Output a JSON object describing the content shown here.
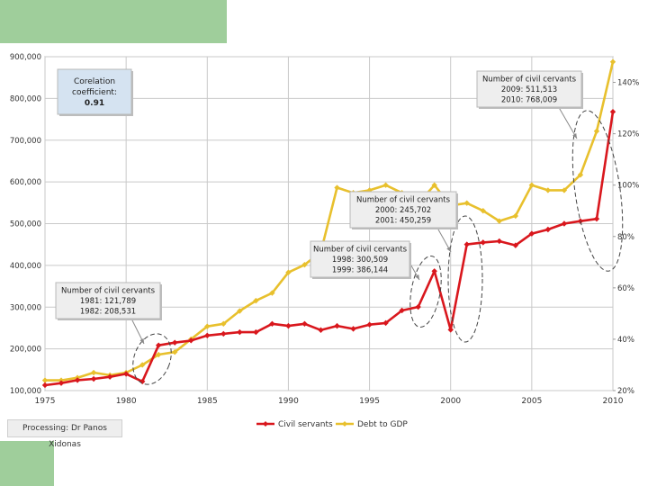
{
  "colors": {
    "civil": "#d9171d",
    "debt": "#e8c02d",
    "accent": "#9fce9b"
  },
  "credit": "Processing: Dr Panos Xidonas",
  "chart_data": {
    "type": "line",
    "x": [
      1975,
      1976,
      1977,
      1978,
      1979,
      1980,
      1981,
      1982,
      1983,
      1984,
      1985,
      1986,
      1987,
      1988,
      1989,
      1990,
      1991,
      1992,
      1993,
      1994,
      1995,
      1996,
      1997,
      1998,
      1999,
      2000,
      2001,
      2002,
      2003,
      2004,
      2005,
      2006,
      2007,
      2008,
      2009,
      2010
    ],
    "xlim": [
      1975,
      2010
    ],
    "x_ticks": [
      1975,
      1980,
      1985,
      1990,
      1995,
      2000,
      2005,
      2010
    ],
    "ylim_left": [
      100000,
      900000
    ],
    "y_ticks_left": [
      "100,000",
      "200,000",
      "300,000",
      "400,000",
      "500,000",
      "600,000",
      "700,000",
      "800,000",
      "900,000"
    ],
    "ylim_right": [
      20,
      150
    ],
    "y_ticks_right": [
      "20%",
      "40%",
      "60%",
      "80%",
      "100%",
      "120%",
      "140%"
    ],
    "series": [
      {
        "name": "Civil servants",
        "axis": "left",
        "values": [
          113000,
          118000,
          125000,
          128000,
          133000,
          140000,
          121789,
          208531,
          215000,
          220000,
          232000,
          236000,
          240000,
          240000,
          260000,
          255000,
          260000,
          245000,
          255000,
          248000,
          258000,
          262000,
          292000,
          300509,
          386144,
          245702,
          450259,
          455000,
          458000,
          448000,
          476000,
          486000,
          500000,
          506000,
          511513,
          768009
        ]
      },
      {
        "name": "Debt to GDP",
        "axis": "right",
        "values": [
          24,
          24,
          25,
          27,
          26,
          27,
          30,
          34,
          35,
          40,
          45,
          46,
          51,
          55,
          58,
          66,
          69,
          74,
          99,
          97,
          98,
          100,
          97,
          93,
          100,
          92,
          93,
          90,
          86,
          88,
          100,
          98,
          98,
          104,
          121,
          148
        ]
      }
    ],
    "legend": [
      "Civil servants",
      "Debt to GDP"
    ],
    "legend_position": "bottom",
    "grid": true,
    "annotations": [
      {
        "kind": "box",
        "lines": [
          "Corelation",
          "coefficient:",
          "0.91"
        ]
      },
      {
        "kind": "callout",
        "lines": [
          "Number of civil cervants",
          "1981: 121,789",
          "1982: 208,531"
        ]
      },
      {
        "kind": "callout",
        "lines": [
          "Number of civil cervants",
          "1998: 300,509",
          "1999: 386,144"
        ]
      },
      {
        "kind": "callout",
        "lines": [
          "Number of civil cervants",
          "2000: 245,702",
          "2001: 450,259"
        ]
      },
      {
        "kind": "callout",
        "lines": [
          "Number of civil cervants",
          "2009: 511,513",
          "2010: 768,009"
        ]
      }
    ]
  }
}
